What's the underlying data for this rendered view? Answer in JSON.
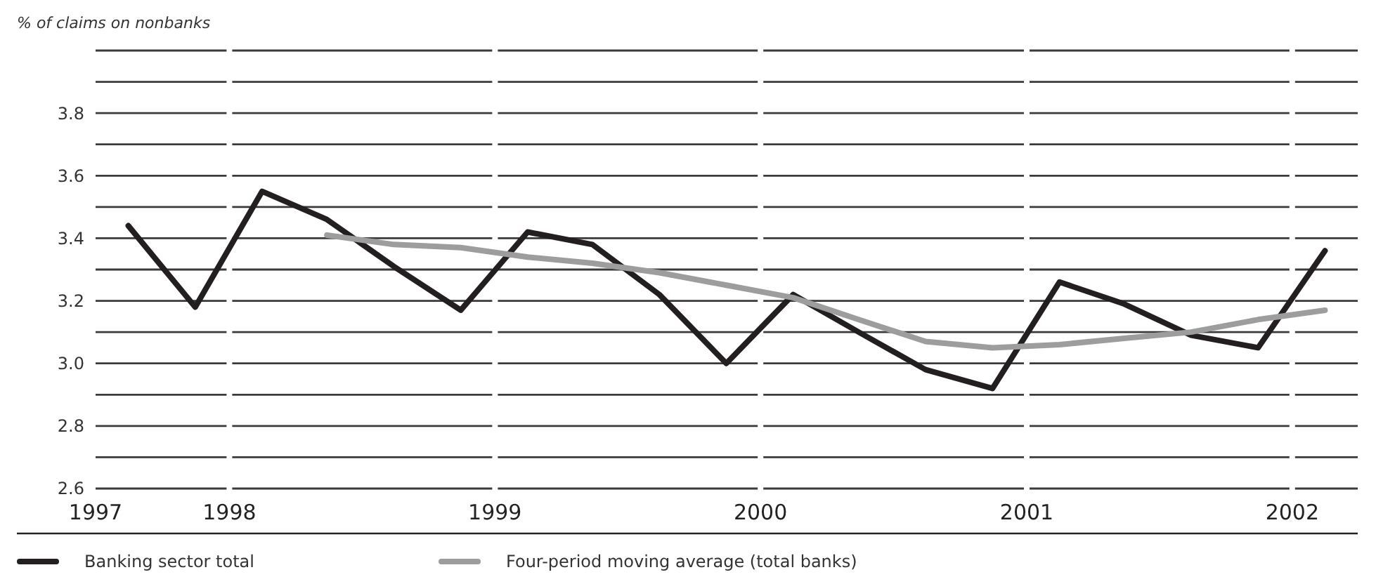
{
  "chart_data": {
    "type": "line",
    "ylabel": "% of claims on nonbanks",
    "x": [
      "1997-08-15",
      "1997-11-15",
      "1998-02-15",
      "1998-05-15",
      "1998-08-15",
      "1998-11-15",
      "1999-02-15",
      "1999-05-15",
      "1999-08-15",
      "1999-11-15",
      "2000-02-15",
      "2000-05-15",
      "2000-08-15",
      "2000-11-15",
      "2001-02-15",
      "2001-05-15",
      "2001-08-15",
      "2001-11-15",
      "2002-02-15"
    ],
    "series": [
      {
        "name": "Banking sector total",
        "color": "#231f20",
        "values": [
          3.44,
          3.18,
          3.55,
          3.46,
          3.31,
          3.17,
          3.42,
          3.38,
          3.22,
          3.0,
          3.22,
          3.1,
          2.98,
          2.92,
          3.26,
          3.19,
          3.09,
          3.05,
          3.36
        ]
      },
      {
        "name": "Four-period moving average (total banks)",
        "color": "#9d9d9d",
        "values": [
          null,
          null,
          null,
          3.41,
          3.38,
          3.37,
          3.34,
          3.32,
          3.29,
          3.25,
          3.21,
          3.14,
          3.07,
          3.05,
          3.06,
          3.08,
          3.1,
          3.14,
          3.17
        ]
      }
    ],
    "xlim": [
      "1997-07-01",
      "2002-04-01"
    ],
    "xticks": [
      {
        "value": "1997-07-01",
        "label": "1997"
      },
      {
        "value": "1998-01-01",
        "label": "1998"
      },
      {
        "value": "1999-01-01",
        "label": "1999"
      },
      {
        "value": "2000-01-01",
        "label": "2000"
      },
      {
        "value": "2001-01-01",
        "label": "2001"
      },
      {
        "value": "2002-01-01",
        "label": "2002"
      }
    ],
    "ylim": [
      2.6,
      4.0
    ],
    "yticks": [
      {
        "value": 2.6,
        "label": "2.6"
      },
      {
        "value": 2.7,
        "label": null
      },
      {
        "value": 2.8,
        "label": "2.8"
      },
      {
        "value": 2.9,
        "label": null
      },
      {
        "value": 3.0,
        "label": "3.0"
      },
      {
        "value": 3.1,
        "label": null
      },
      {
        "value": 3.2,
        "label": "3.2"
      },
      {
        "value": 3.3,
        "label": null
      },
      {
        "value": 3.4,
        "label": "3.4"
      },
      {
        "value": 3.5,
        "label": null
      },
      {
        "value": 3.6,
        "label": "3.6"
      },
      {
        "value": 3.7,
        "label": null
      },
      {
        "value": 3.8,
        "label": "3.8"
      },
      {
        "value": 3.9,
        "label": null
      },
      {
        "value": 4.0,
        "label": null
      }
    ],
    "grid": "y",
    "legend": "bottom",
    "marker": "none",
    "line_style": "solid"
  }
}
